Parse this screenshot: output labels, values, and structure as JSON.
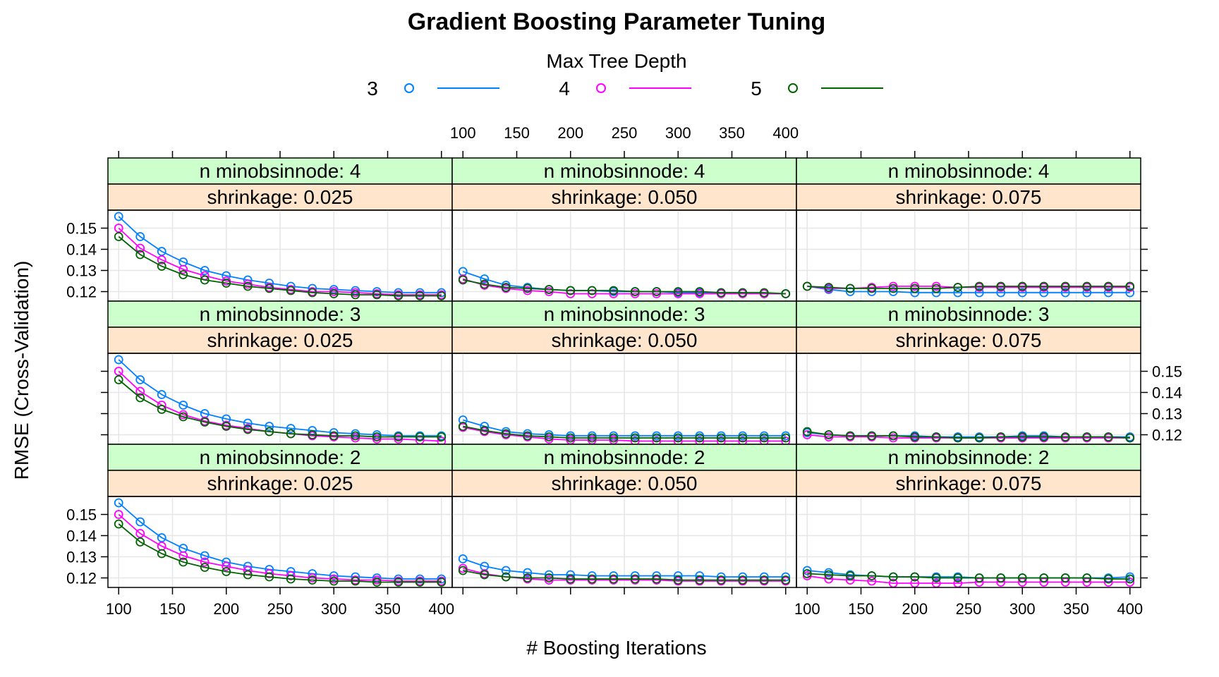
{
  "chart_data": {
    "type": "line",
    "title": "Gradient Boosting Parameter Tuning",
    "xlabel": "# Boosting Iterations",
    "ylabel": "RMSE (Cross-Validation)",
    "legend": {
      "title": "Max Tree Depth",
      "placement": "top"
    },
    "x_ticks": [
      100,
      150,
      200,
      250,
      300,
      350,
      400
    ],
    "y_ticks": [
      0.12,
      0.13,
      0.14,
      0.15
    ],
    "x_tick_labels": [
      "100",
      "150",
      "200",
      "250",
      "300",
      "350",
      "400"
    ],
    "y_tick_labels": [
      "0.12",
      "0.13",
      "0.14",
      "0.15"
    ],
    "xlim": [
      90,
      410
    ],
    "ylim": [
      0.1155,
      0.1585
    ],
    "grid": true,
    "x": [
      100,
      120,
      140,
      160,
      180,
      200,
      220,
      240,
      260,
      280,
      300,
      320,
      340,
      360,
      380,
      400
    ],
    "series_styles": [
      {
        "name": "3",
        "color": "#0080ff"
      },
      {
        "name": "4",
        "color": "#ff00ff"
      },
      {
        "name": "5",
        "color": "#006400"
      }
    ],
    "panels": [
      {
        "minobsinnode_label": "n minobsinnode: 4",
        "shrinkage_label": "shrinkage: 0.025",
        "series": [
          {
            "name": "3",
            "values": [
              0.1555,
              0.146,
              0.139,
              0.134,
              0.13,
              0.1275,
              0.1255,
              0.124,
              0.1225,
              0.1215,
              0.121,
              0.1205,
              0.12,
              0.1195,
              0.1195,
              0.1195
            ]
          },
          {
            "name": "4",
            "values": [
              0.15,
              0.1405,
              0.135,
              0.1305,
              0.1275,
              0.125,
              0.1235,
              0.122,
              0.121,
              0.12,
              0.12,
              0.1195,
              0.119,
              0.1185,
              0.1185,
              0.1185
            ]
          },
          {
            "name": "5",
            "values": [
              0.146,
              0.1375,
              0.132,
              0.128,
              0.1255,
              0.124,
              0.1225,
              0.1215,
              0.1205,
              0.1195,
              0.119,
              0.1185,
              0.1185,
              0.118,
              0.118,
              0.118
            ]
          }
        ]
      },
      {
        "minobsinnode_label": "n minobsinnode: 4",
        "shrinkage_label": "shrinkage: 0.050",
        "series": [
          {
            "name": "3",
            "values": [
              0.1295,
              0.126,
              0.123,
              0.122,
              0.121,
              0.1205,
              0.1205,
              0.12,
              0.12,
              0.12,
              0.1195,
              0.1195,
              0.1195,
              0.1195,
              0.119,
              0.119
            ]
          },
          {
            "name": "4",
            "values": [
              0.126,
              0.123,
              0.1215,
              0.1205,
              0.12,
              0.119,
              0.119,
              0.119,
              0.119,
              0.119,
              0.119,
              0.119,
              0.119,
              0.119,
              0.119,
              0.119
            ]
          },
          {
            "name": "5",
            "values": [
              0.1255,
              0.1235,
              0.122,
              0.1215,
              0.121,
              0.1205,
              0.1205,
              0.1205,
              0.12,
              0.12,
              0.12,
              0.12,
              0.1195,
              0.1195,
              0.1195,
              0.119
            ]
          }
        ]
      },
      {
        "minobsinnode_label": "n minobsinnode: 4",
        "shrinkage_label": "shrinkage: 0.075",
        "series": [
          {
            "name": "3",
            "values": [
              0.1225,
              0.121,
              0.12,
              0.12,
              0.12,
              0.1195,
              0.1195,
              0.1195,
              0.1195,
              0.1195,
              0.1195,
              0.1195,
              0.1195,
              0.1195,
              0.1195,
              0.1195
            ]
          },
          {
            "name": "4",
            "values": [
              0.1225,
              0.1215,
              0.1215,
              0.122,
              0.1225,
              0.1225,
              0.1225,
              0.122,
              0.122,
              0.122,
              0.122,
              0.122,
              0.122,
              0.122,
              0.122,
              0.122
            ]
          },
          {
            "name": "5",
            "values": [
              0.1225,
              0.122,
              0.1215,
              0.1215,
              0.1215,
              0.1215,
              0.1215,
              0.122,
              0.1225,
              0.1225,
              0.1225,
              0.1225,
              0.1225,
              0.1225,
              0.1225,
              0.1225
            ]
          }
        ]
      },
      {
        "minobsinnode_label": "n minobsinnode: 3",
        "shrinkage_label": "shrinkage: 0.025",
        "series": [
          {
            "name": "3",
            "values": [
              0.1555,
              0.146,
              0.139,
              0.134,
              0.13,
              0.1275,
              0.1255,
              0.124,
              0.123,
              0.122,
              0.121,
              0.1205,
              0.12,
              0.1195,
              0.1195,
              0.1195
            ]
          },
          {
            "name": "4",
            "values": [
              0.15,
              0.1405,
              0.134,
              0.1295,
              0.1265,
              0.1245,
              0.123,
              0.1215,
              0.1205,
              0.1195,
              0.119,
              0.1185,
              0.118,
              0.118,
              0.1175,
              0.117
            ]
          },
          {
            "name": "5",
            "values": [
              0.146,
              0.1375,
              0.132,
              0.1285,
              0.126,
              0.124,
              0.1225,
              0.1215,
              0.1205,
              0.12,
              0.1195,
              0.1195,
              0.119,
              0.119,
              0.119,
              0.119
            ]
          }
        ]
      },
      {
        "minobsinnode_label": "n minobsinnode: 3",
        "shrinkage_label": "shrinkage: 0.050",
        "series": [
          {
            "name": "3",
            "values": [
              0.127,
              0.124,
              0.1215,
              0.1205,
              0.12,
              0.1195,
              0.1195,
              0.1195,
              0.1195,
              0.1195,
              0.1195,
              0.1195,
              0.1195,
              0.1195,
              0.1195,
              0.1195
            ]
          },
          {
            "name": "4",
            "values": [
              0.1235,
              0.1215,
              0.12,
              0.119,
              0.118,
              0.1175,
              0.1175,
              0.1175,
              0.117,
              0.117,
              0.117,
              0.117,
              0.117,
              0.117,
              0.117,
              0.117
            ]
          },
          {
            "name": "5",
            "values": [
              0.124,
              0.122,
              0.1205,
              0.1195,
              0.119,
              0.1185,
              0.1185,
              0.1185,
              0.1185,
              0.1185,
              0.1185,
              0.1185,
              0.1185,
              0.1185,
              0.1185,
              0.1185
            ]
          }
        ]
      },
      {
        "minobsinnode_label": "n minobsinnode: 3",
        "shrinkage_label": "shrinkage: 0.075",
        "series": [
          {
            "name": "3",
            "values": [
              0.121,
              0.12,
              0.1195,
              0.1195,
              0.1195,
              0.1195,
              0.119,
              0.119,
              0.119,
              0.119,
              0.1195,
              0.1195,
              0.119,
              0.119,
              0.119,
              0.119
            ]
          },
          {
            "name": "4",
            "values": [
              0.12,
              0.119,
              0.119,
              0.119,
              0.1185,
              0.1185,
              0.1185,
              0.1185,
              0.1185,
              0.1185,
              0.1185,
              0.1185,
              0.1185,
              0.1185,
              0.1185,
              0.1185
            ]
          },
          {
            "name": "5",
            "values": [
              0.1215,
              0.12,
              0.1195,
              0.1195,
              0.1195,
              0.119,
              0.119,
              0.1185,
              0.1185,
              0.119,
              0.119,
              0.119,
              0.119,
              0.119,
              0.119,
              0.1185
            ]
          }
        ]
      },
      {
        "minobsinnode_label": "n minobsinnode: 2",
        "shrinkage_label": "shrinkage: 0.025",
        "series": [
          {
            "name": "3",
            "values": [
              0.1555,
              0.1465,
              0.139,
              0.134,
              0.1305,
              0.1275,
              0.1255,
              0.124,
              0.123,
              0.122,
              0.121,
              0.1205,
              0.12,
              0.1195,
              0.1195,
              0.1195
            ]
          },
          {
            "name": "4",
            "values": [
              0.15,
              0.141,
              0.135,
              0.1305,
              0.1275,
              0.1255,
              0.1235,
              0.122,
              0.121,
              0.12,
              0.1195,
              0.119,
              0.119,
              0.1185,
              0.1185,
              0.1185
            ]
          },
          {
            "name": "5",
            "values": [
              0.1455,
              0.137,
              0.1315,
              0.1275,
              0.125,
              0.123,
              0.1215,
              0.1205,
              0.1195,
              0.119,
              0.1185,
              0.1185,
              0.118,
              0.118,
              0.118,
              0.118
            ]
          }
        ]
      },
      {
        "minobsinnode_label": "n minobsinnode: 2",
        "shrinkage_label": "shrinkage: 0.050",
        "series": [
          {
            "name": "3",
            "values": [
              0.129,
              0.1255,
              0.1235,
              0.1225,
              0.1215,
              0.1215,
              0.121,
              0.121,
              0.121,
              0.121,
              0.121,
              0.121,
              0.1205,
              0.1205,
              0.1205,
              0.1205
            ]
          },
          {
            "name": "4",
            "values": [
              0.1245,
              0.122,
              0.1205,
              0.1195,
              0.119,
              0.119,
              0.119,
              0.119,
              0.119,
              0.119,
              0.1185,
              0.1185,
              0.1185,
              0.1185,
              0.1185,
              0.1185
            ]
          },
          {
            "name": "5",
            "values": [
              0.1235,
              0.1215,
              0.1205,
              0.12,
              0.12,
              0.1195,
              0.1195,
              0.1195,
              0.1195,
              0.1195,
              0.119,
              0.119,
              0.119,
              0.119,
              0.119,
              0.119
            ]
          }
        ]
      },
      {
        "minobsinnode_label": "n minobsinnode: 2",
        "shrinkage_label": "shrinkage: 0.075",
        "series": [
          {
            "name": "3",
            "values": [
              0.1235,
              0.1225,
              0.1215,
              0.121,
              0.1205,
              0.1205,
              0.1205,
              0.1205,
              0.12,
              0.12,
              0.12,
              0.12,
              0.12,
              0.12,
              0.12,
              0.1205
            ]
          },
          {
            "name": "4",
            "values": [
              0.121,
              0.1195,
              0.119,
              0.1185,
              0.1175,
              0.1175,
              0.1175,
              0.1175,
              0.118,
              0.118,
              0.118,
              0.118,
              0.118,
              0.118,
              0.118,
              0.118
            ]
          },
          {
            "name": "5",
            "values": [
              0.122,
              0.1215,
              0.121,
              0.121,
              0.1205,
              0.1205,
              0.12,
              0.12,
              0.12,
              0.12,
              0.12,
              0.12,
              0.12,
              0.12,
              0.1195,
              0.1195
            ]
          }
        ]
      }
    ]
  },
  "colors": {
    "strip_top": "#ccffcc",
    "strip_bottom": "#ffe5cc",
    "grid": "#e6e6e6"
  }
}
